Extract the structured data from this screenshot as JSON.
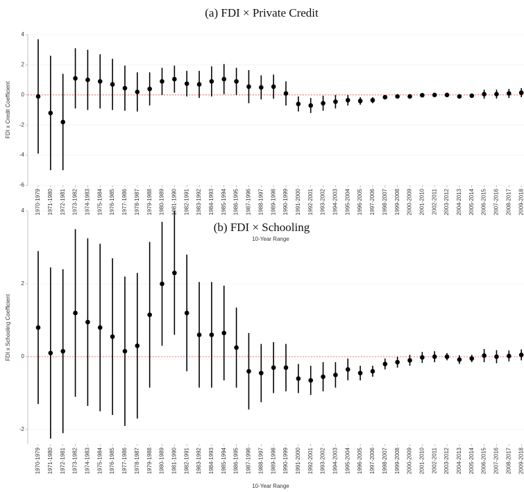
{
  "chart_data": [
    {
      "type": "errorbar",
      "title": "(a) FDI × Private Credit",
      "xlabel": "10-Year Range",
      "ylabel": "FDI x Credit Coefficient",
      "categories": [
        "1970-1979",
        "1971-1980",
        "1972-1981",
        "1973-1982",
        "1974-1983",
        "1975-1984",
        "1976-1985",
        "1977-1986",
        "1978-1987",
        "1979-1988",
        "1980-1989",
        "1981-1990",
        "1982-1991",
        "1983-1992",
        "1984-1993",
        "1985-1994",
        "1986-1995",
        "1987-1996",
        "1988-1997",
        "1989-1998",
        "1990-1999",
        "1991-2000",
        "1992-2001",
        "1993-2002",
        "1994-2003",
        "1995-2004",
        "1996-2005",
        "1997-2006",
        "1998-2007",
        "1999-2008",
        "2000-2009",
        "2001-2010",
        "2002-2011",
        "2003-2012",
        "2004-2013",
        "2005-2014",
        "2006-2015",
        "2007-2016",
        "2008-2017",
        "2009-2018"
      ],
      "values": [
        -0.1,
        -1.2,
        -1.8,
        1.1,
        1.0,
        0.9,
        0.7,
        0.45,
        0.2,
        0.4,
        0.9,
        1.05,
        0.75,
        0.7,
        0.9,
        1.05,
        0.9,
        0.55,
        0.5,
        0.55,
        0.1,
        -0.6,
        -0.7,
        -0.55,
        -0.45,
        -0.35,
        -0.4,
        -0.35,
        -0.15,
        -0.1,
        -0.1,
        -0.02,
        0,
        0,
        -0.1,
        -0.05,
        0.05,
        0.05,
        0.1,
        0.15
      ],
      "errors": [
        3.8,
        3.8,
        3.2,
        2.0,
        2.0,
        1.8,
        1.7,
        1.5,
        1.3,
        1.1,
        0.9,
        0.9,
        0.85,
        0.9,
        1.0,
        1.0,
        0.9,
        1.1,
        0.8,
        0.8,
        0.8,
        0.5,
        0.5,
        0.5,
        0.45,
        0.35,
        0.25,
        0.2,
        0.1,
        0.1,
        0.15,
        0.1,
        0.1,
        0.1,
        0.1,
        0.1,
        0.3,
        0.3,
        0.3,
        0.3
      ],
      "color": "#000000",
      "reference_line": 0,
      "reference_color": "#e05555",
      "ylim": [
        -6,
        4
      ],
      "yticks": [
        -6,
        -4,
        -2,
        0,
        2,
        4
      ],
      "grid": true
    },
    {
      "type": "errorbar",
      "title": "(b) FDI × Schooling",
      "xlabel": "10-Year Range",
      "ylabel": "FDI x Schooling Coefficient",
      "categories": [
        "1970-1979",
        "1971-1980",
        "1972-1981",
        "1973-1982",
        "1974-1983",
        "1975-1984",
        "1976-1985",
        "1977-1986",
        "1978-1987",
        "1979-1988",
        "1980-1989",
        "1981-1990",
        "1982-1991",
        "1983-1992",
        "1984-1993",
        "1985-1994",
        "1986-1995",
        "1987-1996",
        "1988-1997",
        "1989-1998",
        "1990-1999",
        "1991-2000",
        "1992-2001",
        "1993-2002",
        "1994-2003",
        "1995-2004",
        "1996-2005",
        "1997-2006",
        "1998-2007",
        "1999-2008",
        "2000-2009",
        "2001-2010",
        "2002-2011",
        "2003-2012",
        "2004-2013",
        "2005-2014",
        "2006-2015",
        "2007-2016",
        "2008-2017",
        "2009-2018"
      ],
      "values": [
        0.8,
        0.1,
        0.15,
        1.2,
        0.95,
        0.8,
        0.55,
        0.15,
        0.3,
        1.15,
        2.0,
        2.3,
        1.2,
        0.6,
        0.6,
        0.65,
        0.25,
        -0.4,
        -0.45,
        -0.3,
        -0.3,
        -0.6,
        -0.65,
        -0.55,
        -0.5,
        -0.35,
        -0.45,
        -0.4,
        -0.2,
        -0.15,
        -0.1,
        -0.02,
        0,
        0,
        -0.08,
        -0.05,
        0.03,
        0,
        0.02,
        0.05
      ],
      "errors": [
        2.1,
        2.35,
        2.25,
        2.3,
        2.3,
        2.3,
        2.15,
        2.05,
        2.0,
        2.0,
        1.7,
        1.7,
        1.6,
        1.45,
        1.45,
        1.3,
        1.1,
        1.05,
        0.8,
        0.7,
        0.65,
        0.4,
        0.4,
        0.4,
        0.35,
        0.3,
        0.2,
        0.15,
        0.15,
        0.15,
        0.15,
        0.15,
        0.15,
        0.1,
        0.12,
        0.1,
        0.18,
        0.18,
        0.15,
        0.15
      ],
      "color": "#000000",
      "reference_line": 0,
      "reference_color": "#e05555",
      "ylim": [
        -2.4,
        4
      ],
      "yticks": [
        -2,
        0,
        2,
        4
      ],
      "grid": true
    }
  ]
}
